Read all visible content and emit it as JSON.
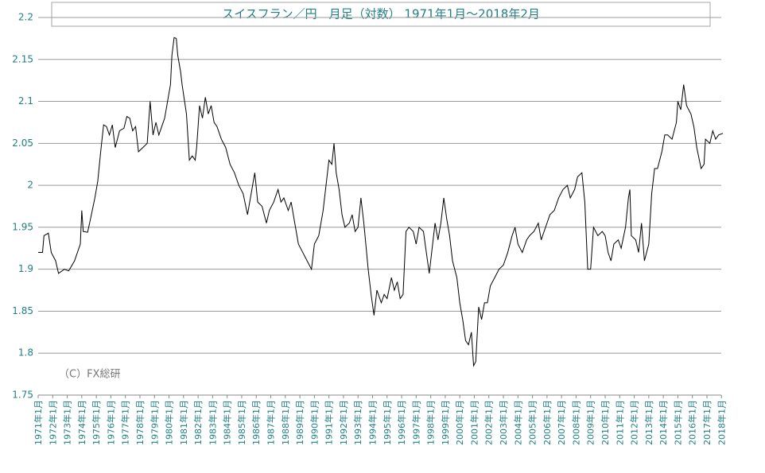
{
  "chart_data": {
    "type": "line",
    "title": "スイスフラン／円　月足（対数） 1971年1月～2018年2月",
    "annotation": "（C）FX総研",
    "color": "#000000",
    "grid": true,
    "ylim": [
      1.75,
      2.2
    ],
    "yticks": [
      1.75,
      1.8,
      1.85,
      1.9,
      1.95,
      2,
      2.05,
      2.1,
      2.15,
      2.2
    ],
    "xlim": [
      1971,
      2018.15
    ],
    "xticks": [
      {
        "value": 1971,
        "label": "1971年1月"
      },
      {
        "value": 1972,
        "label": "1972年1月"
      },
      {
        "value": 1973,
        "label": "1973年1月"
      },
      {
        "value": 1974,
        "label": "1974年1月"
      },
      {
        "value": 1975,
        "label": "1975年1月"
      },
      {
        "value": 1976,
        "label": "1976年1月"
      },
      {
        "value": 1977,
        "label": "1977年1月"
      },
      {
        "value": 1978,
        "label": "1978年1月"
      },
      {
        "value": 1979,
        "label": "1979年1月"
      },
      {
        "value": 1980,
        "label": "1980年1月"
      },
      {
        "value": 1981,
        "label": "1981年1月"
      },
      {
        "value": 1982,
        "label": "1982年1月"
      },
      {
        "value": 1983,
        "label": "1983年1月"
      },
      {
        "value": 1984,
        "label": "1984年1月"
      },
      {
        "value": 1985,
        "label": "1985年1月"
      },
      {
        "value": 1986,
        "label": "1986年1月"
      },
      {
        "value": 1987,
        "label": "1987年1月"
      },
      {
        "value": 1988,
        "label": "1988年1月"
      },
      {
        "value": 1989,
        "label": "1989年1月"
      },
      {
        "value": 1990,
        "label": "1990年1月"
      },
      {
        "value": 1991,
        "label": "1991年1月"
      },
      {
        "value": 1992,
        "label": "1992年1月"
      },
      {
        "value": 1993,
        "label": "1993年1月"
      },
      {
        "value": 1994,
        "label": "1994年1月"
      },
      {
        "value": 1995,
        "label": "1995年1月"
      },
      {
        "value": 1996,
        "label": "1996年1月"
      },
      {
        "value": 1997,
        "label": "1997年1月"
      },
      {
        "value": 1998,
        "label": "1998年1月"
      },
      {
        "value": 1999,
        "label": "1999年1月"
      },
      {
        "value": 2000,
        "label": "2000年1月"
      },
      {
        "value": 2001,
        "label": "2001年1月"
      },
      {
        "value": 2002,
        "label": "2002年1月"
      },
      {
        "value": 2003,
        "label": "2003年1月"
      },
      {
        "value": 2004,
        "label": "2004年1月"
      },
      {
        "value": 2005,
        "label": "2005年1月"
      },
      {
        "value": 2006,
        "label": "2006年1月"
      },
      {
        "value": 2007,
        "label": "2007年1月"
      },
      {
        "value": 2008,
        "label": "2008年1月"
      },
      {
        "value": 2009,
        "label": "2009年1月"
      },
      {
        "value": 2010,
        "label": "2010年1月"
      },
      {
        "value": 2011,
        "label": "2011年1月"
      },
      {
        "value": 2012,
        "label": "2012年1月"
      },
      {
        "value": 2013,
        "label": "2013年1月"
      },
      {
        "value": 2014,
        "label": "2014年1月"
      },
      {
        "value": 2015,
        "label": "2015年1月"
      },
      {
        "value": 2016,
        "label": "2016年1月"
      },
      {
        "value": 2017,
        "label": "2017年1月"
      },
      {
        "value": 2018,
        "label": "2018年1月"
      }
    ],
    "x": [
      1971.0,
      1971.3,
      1971.4,
      1971.7,
      1971.9,
      1972.2,
      1972.4,
      1972.8,
      1973.1,
      1973.5,
      1973.9,
      1974.0,
      1974.1,
      1974.4,
      1974.6,
      1974.9,
      1975.1,
      1975.3,
      1975.5,
      1975.7,
      1975.9,
      1976.1,
      1976.3,
      1976.6,
      1976.9,
      1977.1,
      1977.3,
      1977.5,
      1977.7,
      1977.9,
      1978.2,
      1978.5,
      1978.7,
      1978.9,
      1979.1,
      1979.3,
      1979.5,
      1979.7,
      1979.9,
      1980.1,
      1980.2,
      1980.35,
      1980.5,
      1980.6,
      1980.8,
      1980.9,
      1981.2,
      1981.4,
      1981.6,
      1981.8,
      1981.9,
      1982.1,
      1982.3,
      1982.5,
      1982.7,
      1982.9,
      1983.1,
      1983.3,
      1983.6,
      1983.9,
      1984.2,
      1984.5,
      1984.8,
      1985.1,
      1985.4,
      1985.7,
      1985.9,
      1986.1,
      1986.4,
      1986.7,
      1986.9,
      1987.2,
      1987.5,
      1987.7,
      1987.9,
      1988.2,
      1988.4,
      1988.7,
      1988.9,
      1989.2,
      1989.5,
      1989.8,
      1990.0,
      1990.3,
      1990.6,
      1990.8,
      1991.0,
      1991.2,
      1991.35,
      1991.5,
      1991.7,
      1991.9,
      1992.1,
      1992.4,
      1992.6,
      1992.8,
      1993.0,
      1993.2,
      1993.4,
      1993.7,
      1993.9,
      1994.1,
      1994.3,
      1994.6,
      1994.8,
      1995.0,
      1995.3,
      1995.5,
      1995.7,
      1995.9,
      1996.1,
      1996.3,
      1996.5,
      1996.8,
      1997.0,
      1997.2,
      1997.5,
      1997.7,
      1997.9,
      1998.1,
      1998.3,
      1998.5,
      1998.7,
      1998.9,
      1999.1,
      1999.3,
      1999.5,
      1999.8,
      2000.0,
      2000.2,
      2000.4,
      2000.6,
      2000.8,
      2000.95,
      2001.1,
      2001.3,
      2001.5,
      2001.7,
      2001.9,
      2002.1,
      2002.4,
      2002.7,
      2003.0,
      2003.3,
      2003.6,
      2003.8,
      2004.0,
      2004.3,
      2004.6,
      2004.8,
      2005.1,
      2005.4,
      2005.6,
      2005.9,
      2006.2,
      2006.5,
      2006.8,
      2007.1,
      2007.4,
      2007.6,
      2007.9,
      2008.1,
      2008.4,
      2008.6,
      2008.8,
      2009.0,
      2009.2,
      2009.5,
      2009.8,
      2010.0,
      2010.2,
      2010.4,
      2010.6,
      2010.9,
      2011.1,
      2011.4,
      2011.6,
      2011.7,
      2011.8,
      2012.1,
      2012.3,
      2012.5,
      2012.7,
      2013.0,
      2013.2,
      2013.4,
      2013.6,
      2013.9,
      2014.1,
      2014.3,
      2014.6,
      2014.9,
      2015.0,
      2015.2,
      2015.4,
      2015.6,
      2015.9,
      2016.1,
      2016.3,
      2016.6,
      2016.8,
      2016.9,
      2017.2,
      2017.4,
      2017.6,
      2017.8,
      2018.1
    ],
    "values": [
      1.92,
      1.92,
      1.94,
      1.943,
      1.92,
      1.91,
      1.895,
      1.9,
      1.898,
      1.91,
      1.93,
      1.97,
      1.945,
      1.944,
      1.96,
      1.985,
      2.005,
      2.04,
      2.072,
      2.07,
      2.06,
      2.072,
      2.045,
      2.065,
      2.068,
      2.082,
      2.08,
      2.065,
      2.07,
      2.04,
      2.045,
      2.05,
      2.1,
      2.06,
      2.075,
      2.06,
      2.07,
      2.08,
      2.1,
      2.12,
      2.155,
      2.176,
      2.175,
      2.155,
      2.135,
      2.12,
      2.085,
      2.03,
      2.035,
      2.03,
      2.045,
      2.095,
      2.08,
      2.105,
      2.085,
      2.095,
      2.075,
      2.07,
      2.055,
      2.045,
      2.025,
      2.015,
      2.0,
      1.99,
      1.965,
      1.995,
      2.015,
      1.98,
      1.975,
      1.955,
      1.97,
      1.98,
      1.995,
      1.98,
      1.985,
      1.97,
      1.98,
      1.95,
      1.93,
      1.92,
      1.91,
      1.9,
      1.93,
      1.94,
      1.97,
      2.0,
      2.03,
      2.025,
      2.05,
      2.015,
      1.995,
      1.965,
      1.95,
      1.955,
      1.965,
      1.945,
      1.95,
      1.985,
      1.955,
      1.9,
      1.87,
      1.845,
      1.875,
      1.86,
      1.87,
      1.865,
      1.89,
      1.875,
      1.885,
      1.865,
      1.87,
      1.945,
      1.95,
      1.945,
      1.93,
      1.95,
      1.945,
      1.92,
      1.895,
      1.925,
      1.955,
      1.935,
      1.955,
      1.985,
      1.96,
      1.94,
      1.91,
      1.89,
      1.86,
      1.84,
      1.815,
      1.81,
      1.825,
      1.785,
      1.79,
      1.855,
      1.84,
      1.86,
      1.86,
      1.88,
      1.89,
      1.9,
      1.905,
      1.92,
      1.94,
      1.95,
      1.93,
      1.92,
      1.935,
      1.94,
      1.945,
      1.955,
      1.935,
      1.95,
      1.965,
      1.97,
      1.985,
      1.995,
      2.0,
      1.985,
      1.995,
      2.01,
      2.015,
      1.98,
      1.9,
      1.9,
      1.95,
      1.94,
      1.945,
      1.94,
      1.92,
      1.91,
      1.93,
      1.935,
      1.925,
      1.95,
      1.985,
      1.995,
      1.94,
      1.935,
      1.92,
      1.955,
      1.91,
      1.93,
      1.99,
      2.02,
      2.02,
      2.04,
      2.06,
      2.06,
      2.055,
      2.075,
      2.1,
      2.09,
      2.12,
      2.095,
      2.085,
      2.07,
      2.045,
      2.02,
      2.025,
      2.055,
      2.05,
      2.065,
      2.055,
      2.06,
      2.062
    ]
  }
}
